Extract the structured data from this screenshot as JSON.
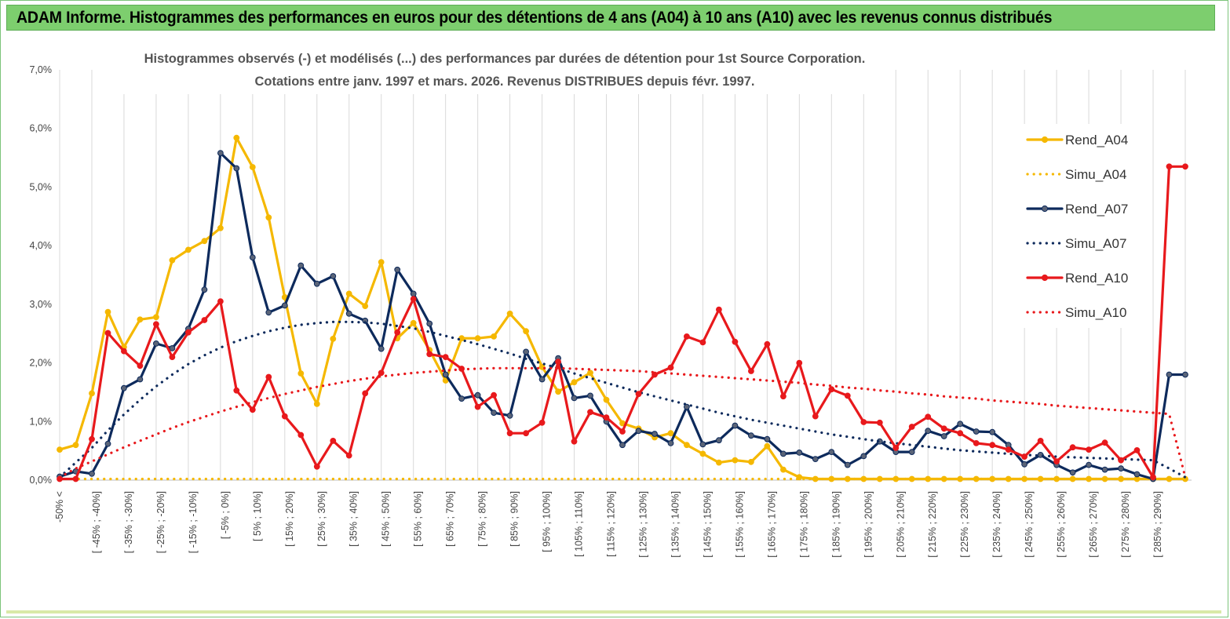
{
  "banner_title": "ADAM Informe. Histogrammes des performances en euros pour des détentions de 4 ans (A04) à 10 ans (A10) avec les revenus connus distribués",
  "chart_data": {
    "type": "line",
    "title": "Histogrammes observés (-) et modélisés (...) des performances par durées de détention pour 1st Source Corporation.",
    "subtitle": "Cotations entre janv. 1997 et mars. 2026. Revenus DISTRIBUES depuis févr. 1997.",
    "xlabel": "",
    "ylabel": "",
    "ylim": [
      0,
      7
    ],
    "yticks": [
      "0,0%",
      "1,0%",
      "2,0%",
      "3,0%",
      "4,0%",
      "5,0%",
      "6,0%",
      "7,0%"
    ],
    "grid": "vertical",
    "legend_position": "right",
    "x_labels": [
      "-50% <",
      "[ -45% ; -40%]",
      "[ -35% ; -30%]",
      "[ -25% ; -20%]",
      "[ -15% ; -10%]",
      "[ -5% ; 0%]",
      "[ 5% ; 10%]",
      "[ 15% ; 20%]",
      "[ 25% ; 30%]",
      "[ 35% ; 40%]",
      "[ 45% ; 50%]",
      "[ 55% ; 60%]",
      "[ 65% ; 70%]",
      "[ 75% ; 80%]",
      "[ 85% ; 90%]",
      "[ 95% ; 100%]",
      "[ 105% ; 110%]",
      "[ 115% ; 120%]",
      "[ 125% ; 130%]",
      "[ 135% ; 140%]",
      "[ 145% ; 150%]",
      "[ 155% ; 160%]",
      "[ 165% ; 170%]",
      "[ 175% ; 180%]",
      "[ 185% ; 190%]",
      "[ 195% ; 200%]",
      "[ 205% ; 210%]",
      "[ 215% ; 220%]",
      "[ 225% ; 230%]",
      "[ 235% ; 240%]",
      "[ 245% ; 250%]",
      "[ 255% ; 260%]",
      "[ 265% ; 270%]",
      "[ 275% ; 280%]",
      "[ 285% ; 290%]"
    ],
    "series": [
      {
        "name": "Rend_A04",
        "color": "#f5b800",
        "style": "solid-markers",
        "values": [
          0.52,
          0.6,
          1.48,
          2.87,
          2.27,
          2.74,
          2.78,
          3.75,
          3.93,
          4.08,
          4.3,
          5.84,
          5.34,
          4.48,
          3.12,
          1.82,
          1.3,
          2.41,
          3.18,
          2.97,
          3.72,
          2.42,
          2.68,
          2.22,
          1.7,
          2.42,
          2.42,
          2.45,
          2.84,
          2.54,
          1.93,
          1.51,
          1.67,
          1.83,
          1.37,
          0.97,
          0.88,
          0.73,
          0.8,
          0.6,
          0.45,
          0.3,
          0.34,
          0.31,
          0.58,
          0.18,
          0.05,
          0.02,
          0.02,
          0.02,
          0.02,
          0.02,
          0.02,
          0.02,
          0.02,
          0.02,
          0.02,
          0.02,
          0.02,
          0.02,
          0.02,
          0.02,
          0.02,
          0.02,
          0.02,
          0.02,
          0.02,
          0.02,
          0.02,
          0.02,
          0.02
        ]
      },
      {
        "name": "Simu_A04",
        "color": "#f5b800",
        "style": "dotted",
        "values": [
          0.02,
          0.02,
          0.02,
          0.02,
          0.02,
          0.02,
          0.02,
          0.02,
          0.02,
          0.02,
          0.02,
          0.02,
          0.02,
          0.02,
          0.02,
          0.02,
          0.02,
          0.02,
          0.02,
          0.02,
          0.02,
          0.02,
          0.02,
          0.02,
          0.02,
          0.02,
          0.02,
          0.02,
          0.02,
          0.02,
          0.02,
          0.02,
          0.02,
          0.02,
          0.02,
          0.02,
          0.02,
          0.02,
          0.02,
          0.02,
          0.02,
          0.02,
          0.02,
          0.02,
          0.02,
          0.02,
          0.02,
          0.02,
          0.02,
          0.02,
          0.02,
          0.02,
          0.02,
          0.02,
          0.02,
          0.02,
          0.02,
          0.02,
          0.02,
          0.02,
          0.02,
          0.02,
          0.02,
          0.02,
          0.02,
          0.02,
          0.02,
          0.02,
          0.02,
          0.02,
          0.02
        ]
      },
      {
        "name": "Rend_A07",
        "color": "#0d2a5c",
        "style": "solid-markers",
        "values": [
          0.06,
          0.15,
          0.11,
          0.62,
          1.57,
          1.72,
          2.33,
          2.25,
          2.58,
          3.25,
          5.58,
          5.32,
          3.8,
          2.86,
          2.98,
          3.66,
          3.35,
          3.48,
          2.84,
          2.72,
          2.24,
          3.59,
          3.18,
          2.67,
          1.8,
          1.39,
          1.45,
          1.15,
          1.1,
          2.19,
          1.72,
          2.08,
          1.4,
          1.44,
          1.0,
          0.6,
          0.84,
          0.79,
          0.63,
          1.25,
          0.61,
          0.68,
          0.93,
          0.76,
          0.7,
          0.45,
          0.47,
          0.36,
          0.48,
          0.26,
          0.41,
          0.66,
          0.48,
          0.48,
          0.84,
          0.75,
          0.96,
          0.83,
          0.82,
          0.6,
          0.27,
          0.43,
          0.26,
          0.13,
          0.26,
          0.18,
          0.2,
          0.1,
          0.02,
          1.8,
          1.8
        ]
      },
      {
        "name": "Simu_A07",
        "color": "#0d2a5c",
        "style": "dotted",
        "values": [
          0.05,
          0.3,
          0.55,
          0.85,
          1.12,
          1.37,
          1.6,
          1.8,
          1.98,
          2.13,
          2.26,
          2.37,
          2.46,
          2.54,
          2.6,
          2.65,
          2.68,
          2.7,
          2.7,
          2.69,
          2.67,
          2.63,
          2.59,
          2.53,
          2.46,
          2.39,
          2.32,
          2.24,
          2.16,
          2.07,
          1.99,
          1.91,
          1.82,
          1.74,
          1.66,
          1.58,
          1.5,
          1.43,
          1.36,
          1.29,
          1.22,
          1.15,
          1.09,
          1.03,
          0.98,
          0.93,
          0.88,
          0.83,
          0.78,
          0.74,
          0.7,
          0.66,
          0.63,
          0.6,
          0.57,
          0.54,
          0.51,
          0.49,
          0.47,
          0.45,
          0.43,
          0.42,
          0.4,
          0.39,
          0.38,
          0.37,
          0.36,
          0.35,
          0.34,
          0.2,
          0.05
        ]
      },
      {
        "name": "Rend_A10",
        "color": "#e8191c",
        "style": "solid-markers",
        "values": [
          0.02,
          0.02,
          0.7,
          2.51,
          2.2,
          1.95,
          2.66,
          2.1,
          2.52,
          2.73,
          3.05,
          1.53,
          1.2,
          1.76,
          1.09,
          0.77,
          0.23,
          0.67,
          0.42,
          1.48,
          1.83,
          2.52,
          3.09,
          2.15,
          2.1,
          1.9,
          1.25,
          1.45,
          0.8,
          0.8,
          0.98,
          2.02,
          0.66,
          1.16,
          1.07,
          0.83,
          1.47,
          1.8,
          1.92,
          2.45,
          2.35,
          2.91,
          2.36,
          1.86,
          2.32,
          1.43,
          2.0,
          1.09,
          1.55,
          1.44,
          0.99,
          0.98,
          0.55,
          0.91,
          1.08,
          0.88,
          0.8,
          0.63,
          0.6,
          0.52,
          0.4,
          0.67,
          0.32,
          0.56,
          0.52,
          0.64,
          0.34,
          0.51,
          0.05,
          5.35,
          5.35
        ]
      },
      {
        "name": "Simu_A10",
        "color": "#e8191c",
        "style": "dotted",
        "values": [
          0.05,
          0.2,
          0.32,
          0.44,
          0.56,
          0.67,
          0.78,
          0.89,
          0.99,
          1.08,
          1.17,
          1.25,
          1.33,
          1.4,
          1.47,
          1.53,
          1.59,
          1.64,
          1.69,
          1.73,
          1.77,
          1.8,
          1.83,
          1.85,
          1.87,
          1.89,
          1.9,
          1.91,
          1.91,
          1.91,
          1.91,
          1.91,
          1.9,
          1.89,
          1.88,
          1.87,
          1.86,
          1.84,
          1.82,
          1.8,
          1.78,
          1.76,
          1.74,
          1.72,
          1.7,
          1.68,
          1.66,
          1.63,
          1.61,
          1.58,
          1.56,
          1.53,
          1.51,
          1.48,
          1.46,
          1.43,
          1.41,
          1.39,
          1.36,
          1.34,
          1.32,
          1.3,
          1.27,
          1.25,
          1.23,
          1.21,
          1.19,
          1.17,
          1.15,
          1.13,
          0.05
        ]
      }
    ]
  }
}
